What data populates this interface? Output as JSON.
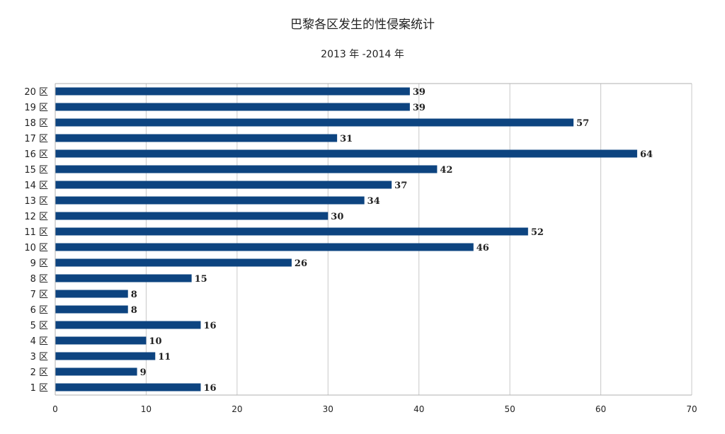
{
  "chart_data": {
    "type": "bar",
    "orientation": "horizontal",
    "title": "巴黎各区发生的性侵案统计",
    "subtitle": "2013 年 -2014 年",
    "categories": [
      "1 区",
      "2 区",
      "3 区",
      "4 区",
      "5 区",
      "6 区",
      "7 区",
      "8 区",
      "9 区",
      "10 区",
      "11 区",
      "12 区",
      "13 区",
      "14 区",
      "15 区",
      "16 区",
      "17 区",
      "18 区",
      "19 区",
      "20 区"
    ],
    "values": [
      16,
      9,
      11,
      10,
      16,
      8,
      8,
      15,
      26,
      46,
      52,
      30,
      34,
      37,
      42,
      64,
      31,
      57,
      39,
      39
    ],
    "xticks": [
      0,
      10,
      20,
      30,
      40,
      50,
      60,
      70
    ],
    "xlim": [
      0,
      70
    ],
    "xlabel": "",
    "ylabel": "",
    "grid": true,
    "legend": "none",
    "colors": {
      "bar": "#0d4480",
      "grid": "#c8c8c8",
      "axis": "#b0b0b0"
    }
  }
}
